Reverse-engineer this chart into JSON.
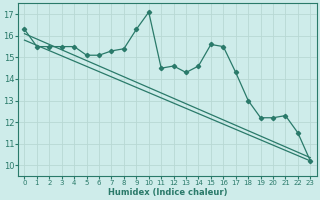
{
  "xlabel": "Humidex (Indice chaleur)",
  "ylabel": "",
  "bg_color": "#ceecea",
  "grid_color": "#b8d8d4",
  "line_color": "#2a7a6a",
  "xlim": [
    -0.5,
    23.5
  ],
  "ylim": [
    9.5,
    17.5
  ],
  "yticks": [
    10,
    11,
    12,
    13,
    14,
    15,
    16,
    17
  ],
  "xticks": [
    0,
    1,
    2,
    3,
    4,
    5,
    6,
    7,
    8,
    9,
    10,
    11,
    12,
    13,
    14,
    15,
    16,
    17,
    18,
    19,
    20,
    21,
    22,
    23
  ],
  "main_series": [
    16.3,
    15.5,
    15.5,
    15.5,
    15.5,
    15.1,
    15.1,
    15.3,
    15.4,
    16.3,
    17.1,
    14.5,
    14.6,
    14.3,
    14.6,
    15.6,
    15.5,
    14.3,
    13.0,
    12.2,
    12.2,
    12.3,
    11.5,
    10.2
  ],
  "trend_start1": 16.1,
  "trend_end1": 10.35,
  "trend_start2": 15.8,
  "trend_end2": 10.2
}
